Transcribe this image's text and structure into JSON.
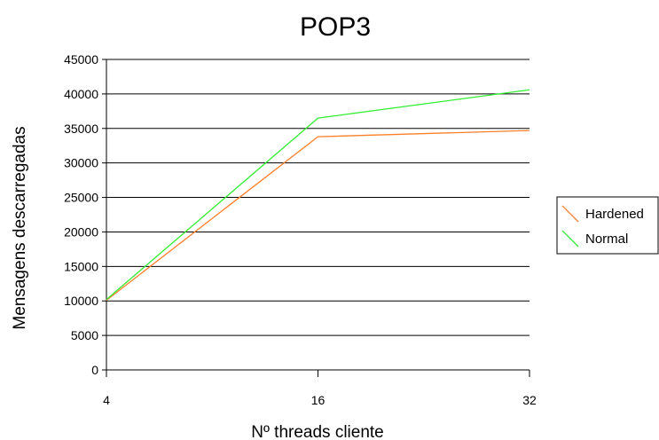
{
  "chart_data": {
    "type": "line",
    "title": "POP3",
    "xlabel": "Nº threads cliente",
    "ylabel": "Mensagens descarregadas",
    "categories": [
      "4",
      "16",
      "32"
    ],
    "ylim": [
      0,
      45000
    ],
    "yticks": [
      0,
      5000,
      10000,
      15000,
      20000,
      25000,
      30000,
      35000,
      40000,
      45000
    ],
    "grid": "horizontal",
    "legend_position": "right",
    "series": [
      {
        "name": "Hardened",
        "color": "#ff7f2a",
        "values": [
          10100,
          33800,
          34700
        ]
      },
      {
        "name": "Normal",
        "color": "#33ee33",
        "values": [
          10200,
          36500,
          40600
        ]
      }
    ]
  }
}
